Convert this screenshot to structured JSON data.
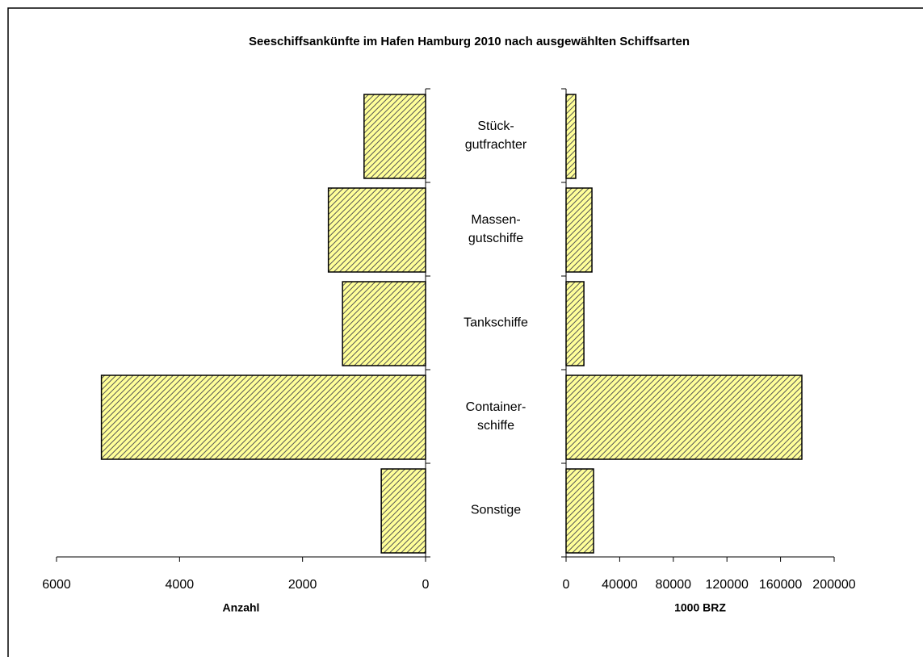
{
  "chart_data": [
    {
      "type": "bar",
      "orientation": "horizontal",
      "title": "Seeschiffsankünfte im Hafen Hamburg 2010 nach ausgewählten Schiffsarten",
      "categories": [
        "Stück-\ngutfrachter",
        "Massen-\ngutschiffe",
        "Tankschiffe",
        "Container-\nschiffe",
        "Sonstige"
      ],
      "values": [
        1000,
        1580,
        1350,
        5270,
        720
      ],
      "xlabel": "Anzahl",
      "xlim": [
        0,
        6000
      ],
      "xticks": [
        0,
        2000,
        4000,
        6000
      ],
      "x_reversed": true,
      "color": "#ffff99"
    },
    {
      "type": "bar",
      "orientation": "horizontal",
      "values": [
        7200,
        19300,
        13300,
        175900,
        20500
      ],
      "xlabel": "1000 BRZ",
      "xlim": [
        0,
        200000
      ],
      "xticks": [
        0,
        40000,
        80000,
        120000,
        160000,
        200000
      ],
      "x_reversed": false,
      "color": "#ffff99"
    }
  ]
}
